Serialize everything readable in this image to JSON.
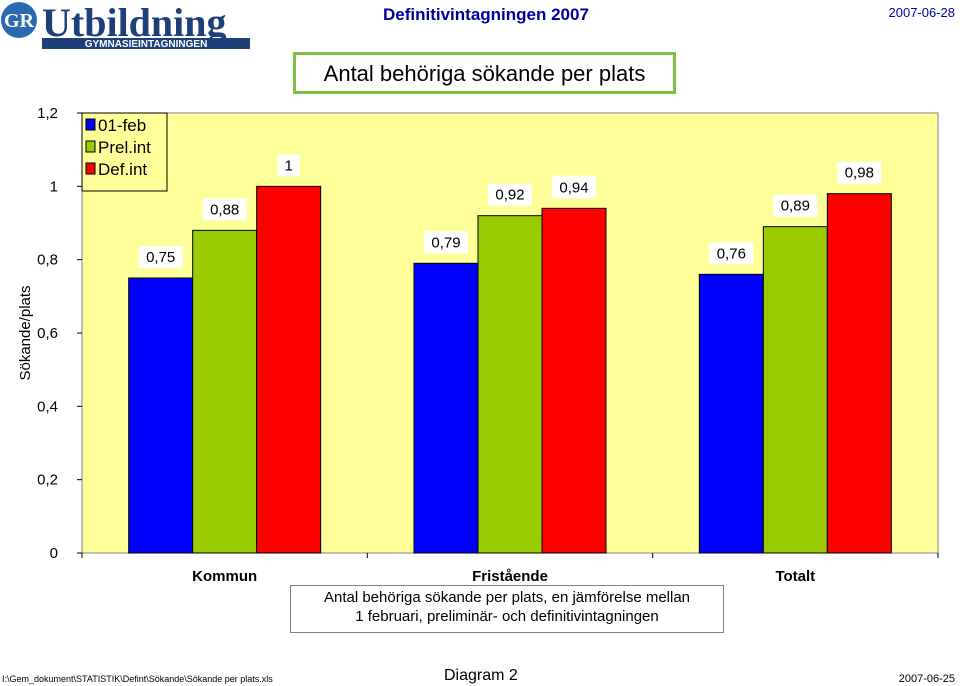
{
  "header": {
    "logo_text": "GR",
    "logo_title": "Utbildning",
    "logo_subtitle": "GYMNASIEINTAGNINGEN",
    "title": "Definitivintagningen 2007",
    "date": "2007-06-28"
  },
  "colors": {
    "series": [
      "#0000ff",
      "#99cc00",
      "#ff0000"
    ],
    "plot_background": "#ffff99",
    "title_border": "#7fc241"
  },
  "chart_data": {
    "type": "bar",
    "title": "Antal behöriga sökande per plats",
    "categories": [
      "Kommun",
      "Fristående",
      "Totalt"
    ],
    "series": [
      {
        "name": "01-feb",
        "values": [
          0.75,
          0.79,
          0.76
        ],
        "labels": [
          "0,75",
          "0,79",
          "0,76"
        ]
      },
      {
        "name": "Prel.int",
        "values": [
          0.88,
          0.92,
          0.89
        ],
        "labels": [
          "0,88",
          "0,92",
          "0,89"
        ]
      },
      {
        "name": "Def.int",
        "values": [
          1.0,
          0.94,
          0.98
        ],
        "labels": [
          "1",
          "0,94",
          "0,98"
        ]
      }
    ],
    "ylabel": "Sökande/plats",
    "xlabel": "",
    "ylim": [
      0,
      1.2
    ],
    "yticks": [
      0,
      0.2,
      0.4,
      0.6,
      0.8,
      1,
      1.2
    ],
    "ytick_labels": [
      "0",
      "0,2",
      "0,4",
      "0,6",
      "0,8",
      "1",
      "1,2"
    ],
    "grid": false,
    "legend_position": "top-left"
  },
  "caption": {
    "line1": "Antal behöriga sökande per plats, en jämförelse mellan",
    "line2": "1 februari, preliminär- och definitivintagningen"
  },
  "footer": {
    "path": "I:\\Gem_dokument\\STATISTIK\\Defint\\Sökande\\Sökande per plats.xls",
    "diagram": "Diagram 2",
    "date": "2007-06-25"
  }
}
